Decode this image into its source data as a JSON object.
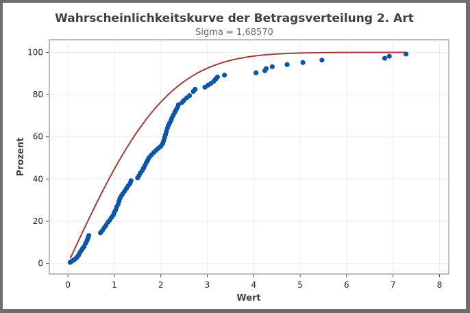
{
  "chart_data": {
    "type": "scatter",
    "title": "Wahrscheinlichkeitskurve der Betragsverteilung 2. Art",
    "subtitle": "Sigma = 1,68570",
    "xlabel": "Wert",
    "ylabel": "Prozent",
    "xlim": [
      -0.4,
      8.2
    ],
    "ylim": [
      -5,
      106
    ],
    "xticks": [
      "0",
      "1",
      "2",
      "3",
      "4",
      "5",
      "6",
      "7",
      "8"
    ],
    "yticks": [
      "0",
      "20",
      "40",
      "60",
      "80",
      "100"
    ],
    "grid": true,
    "legend": "none",
    "sigma": 1.6857,
    "colors": {
      "points": "#0a56a6",
      "curve": "#a23a3a",
      "frame": "#6e6e6e"
    },
    "points": [
      [
        0.05,
        0.5
      ],
      [
        0.08,
        1.0
      ],
      [
        0.12,
        1.5
      ],
      [
        0.16,
        2.2
      ],
      [
        0.2,
        3.0
      ],
      [
        0.23,
        4.0
      ],
      [
        0.26,
        5.2
      ],
      [
        0.29,
        6.2
      ],
      [
        0.32,
        7.2
      ],
      [
        0.35,
        8.0
      ],
      [
        0.38,
        9.5
      ],
      [
        0.41,
        10.8
      ],
      [
        0.43,
        12.0
      ],
      [
        0.45,
        13.2
      ],
      [
        0.7,
        14.5
      ],
      [
        0.74,
        15.5
      ],
      [
        0.78,
        16.8
      ],
      [
        0.82,
        18.0
      ],
      [
        0.86,
        19.5
      ],
      [
        0.9,
        20.5
      ],
      [
        0.94,
        21.8
      ],
      [
        0.98,
        23.0
      ],
      [
        1.0,
        24.2
      ],
      [
        1.03,
        25.5
      ],
      [
        1.05,
        26.8
      ],
      [
        1.08,
        28.0
      ],
      [
        1.1,
        29.5
      ],
      [
        1.12,
        30.8
      ],
      [
        1.15,
        32.0
      ],
      [
        1.18,
        33.0
      ],
      [
        1.22,
        34.2
      ],
      [
        1.26,
        35.5
      ],
      [
        1.3,
        36.8
      ],
      [
        1.34,
        38.0
      ],
      [
        1.36,
        39.2
      ],
      [
        1.5,
        40.5
      ],
      [
        1.53,
        41.5
      ],
      [
        1.56,
        42.8
      ],
      [
        1.6,
        44.0
      ],
      [
        1.63,
        45.2
      ],
      [
        1.66,
        46.5
      ],
      [
        1.69,
        47.8
      ],
      [
        1.72,
        49.0
      ],
      [
        1.75,
        50.2
      ],
      [
        1.8,
        51.5
      ],
      [
        1.85,
        52.6
      ],
      [
        1.9,
        53.6
      ],
      [
        1.95,
        54.6
      ],
      [
        2.0,
        55.5
      ],
      [
        2.04,
        56.8
      ],
      [
        2.06,
        58.0
      ],
      [
        2.08,
        59.5
      ],
      [
        2.1,
        61.0
      ],
      [
        2.12,
        62.5
      ],
      [
        2.14,
        64.0
      ],
      [
        2.16,
        65.2
      ],
      [
        2.19,
        66.5
      ],
      [
        2.22,
        67.8
      ],
      [
        2.24,
        69.0
      ],
      [
        2.27,
        70.3
      ],
      [
        2.3,
        71.6
      ],
      [
        2.33,
        72.8
      ],
      [
        2.36,
        74.0
      ],
      [
        2.38,
        75.2
      ],
      [
        2.46,
        76.3
      ],
      [
        2.5,
        77.3
      ],
      [
        2.56,
        78.5
      ],
      [
        2.62,
        79.5
      ],
      [
        2.7,
        81.5
      ],
      [
        2.74,
        82.5
      ],
      [
        2.95,
        83.5
      ],
      [
        3.02,
        84.5
      ],
      [
        3.08,
        85.3
      ],
      [
        3.14,
        86.3
      ],
      [
        3.18,
        87.3
      ],
      [
        3.22,
        88.3
      ],
      [
        3.37,
        89.2
      ],
      [
        4.05,
        90.3
      ],
      [
        4.24,
        91.3
      ],
      [
        4.27,
        92.3
      ],
      [
        4.4,
        93.2
      ],
      [
        4.72,
        94.2
      ],
      [
        5.06,
        95.2
      ],
      [
        5.47,
        96.3
      ],
      [
        6.82,
        97.2
      ],
      [
        6.92,
        98.2
      ],
      [
        7.28,
        99.2
      ]
    ]
  }
}
